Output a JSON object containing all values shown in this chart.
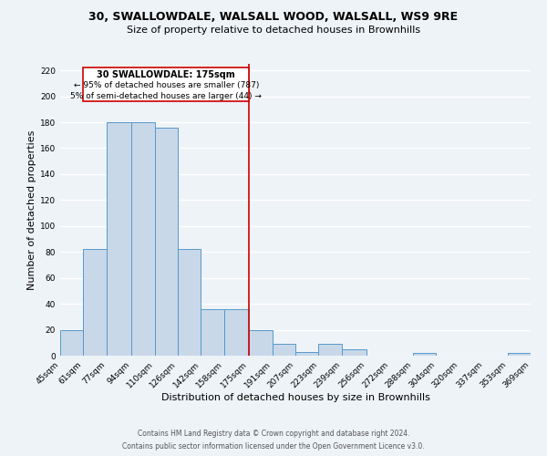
{
  "title": "30, SWALLOWDALE, WALSALL WOOD, WALSALL, WS9 9RE",
  "subtitle": "Size of property relative to detached houses in Brownhills",
  "xlabel": "Distribution of detached houses by size in Brownhills",
  "ylabel": "Number of detached properties",
  "footer_line1": "Contains HM Land Registry data © Crown copyright and database right 2024.",
  "footer_line2": "Contains public sector information licensed under the Open Government Licence v3.0.",
  "bin_edges": [
    45,
    61,
    77,
    94,
    110,
    126,
    142,
    158,
    175,
    191,
    207,
    223,
    239,
    256,
    272,
    288,
    304,
    320,
    337,
    353,
    369
  ],
  "bin_labels": [
    "45sqm",
    "61sqm",
    "77sqm",
    "94sqm",
    "110sqm",
    "126sqm",
    "142sqm",
    "158sqm",
    "175sqm",
    "191sqm",
    "207sqm",
    "223sqm",
    "239sqm",
    "256sqm",
    "272sqm",
    "288sqm",
    "304sqm",
    "320sqm",
    "337sqm",
    "353sqm",
    "369sqm"
  ],
  "bar_heights": [
    20,
    82,
    180,
    180,
    176,
    82,
    36,
    36,
    20,
    9,
    3,
    9,
    5,
    0,
    0,
    2,
    0,
    0,
    0,
    2
  ],
  "bar_color": "#c8d8e8",
  "bar_edge_color": "#5599cc",
  "vline_x": 175,
  "vline_color": "#cc0000",
  "annotation_text_line1": "30 SWALLOWDALE: 175sqm",
  "annotation_text_line2": "← 95% of detached houses are smaller (787)",
  "annotation_text_line3": "5% of semi-detached houses are larger (44) →",
  "annotation_box_color": "#cc0000",
  "ylim": [
    0,
    225
  ],
  "yticks": [
    0,
    20,
    40,
    60,
    80,
    100,
    120,
    140,
    160,
    180,
    200,
    220
  ],
  "bg_color": "#eef3f8",
  "grid_color": "#ffffff",
  "title_fontsize": 9,
  "subtitle_fontsize": 8,
  "axis_label_fontsize": 8,
  "tick_fontsize": 6.5,
  "footer_fontsize": 5.5,
  "ann_fontsize_line1": 7,
  "ann_fontsize_lines": 6.5
}
